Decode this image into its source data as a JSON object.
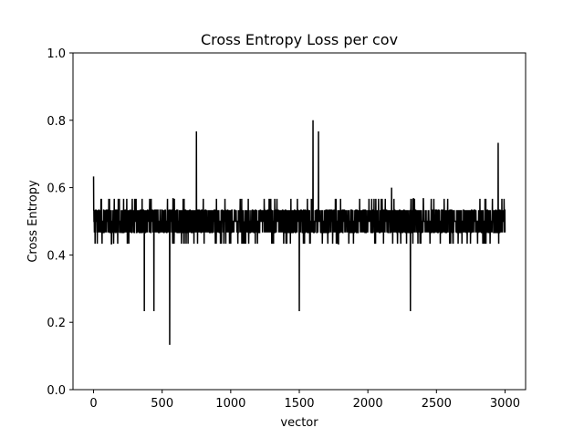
{
  "chart_data": {
    "type": "line",
    "title": "Cross Entropy Loss per cov",
    "xlabel": "vector",
    "ylabel": "Cross Entropy",
    "xlim": [
      -150,
      3150
    ],
    "ylim": [
      0.0,
      1.0
    ],
    "xticks": [
      0,
      500,
      1000,
      1500,
      2000,
      2500,
      3000
    ],
    "xtick_labels": [
      "0",
      "500",
      "1000",
      "1500",
      "2000",
      "2500",
      "3000"
    ],
    "yticks": [
      0.0,
      0.2,
      0.4,
      0.6,
      0.8,
      1.0
    ],
    "ytick_labels": [
      "0.0",
      "0.2",
      "0.4",
      "0.6",
      "0.8",
      "1.0"
    ],
    "grid": false,
    "line_color": "#000000",
    "series": [
      {
        "name": "",
        "x_start": 0,
        "x_end": 3000,
        "count": 3001,
        "typical_range": [
          0.333,
          0.667
        ],
        "mean": 0.5,
        "notable_points": [
          {
            "x": 0,
            "y": 0.633
          },
          {
            "x": 370,
            "y": 0.233
          },
          {
            "x": 440,
            "y": 0.233
          },
          {
            "x": 555,
            "y": 0.133
          },
          {
            "x": 750,
            "y": 0.767
          },
          {
            "x": 1500,
            "y": 0.233
          },
          {
            "x": 1600,
            "y": 0.8
          },
          {
            "x": 1640,
            "y": 0.767
          },
          {
            "x": 2310,
            "y": 0.233
          },
          {
            "x": 2950,
            "y": 0.733
          }
        ]
      }
    ]
  },
  "colors": {
    "background": "#ffffff",
    "axes": "#000000",
    "line": "#000000"
  }
}
